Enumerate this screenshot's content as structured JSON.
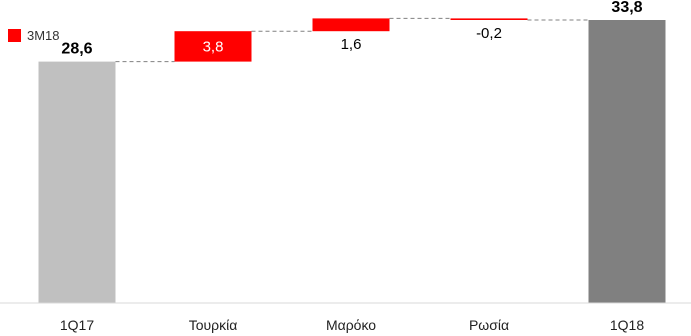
{
  "chart_data": {
    "type": "waterfall",
    "legend": [
      {
        "label": "3M18",
        "color": "#ff0000"
      }
    ],
    "categories": [
      "1Q17",
      "Τουρκία",
      "Μαρόκο",
      "Ρωσία",
      "1Q18"
    ],
    "values": [
      28.6,
      3.8,
      1.6,
      -0.2,
      33.8
    ],
    "value_labels": [
      "28,6",
      "3,8",
      "1,6",
      "-0,2",
      "33,8"
    ],
    "bar_kinds": [
      "total",
      "delta",
      "delta",
      "delta",
      "total"
    ],
    "colors": {
      "start_total": "#c0c0c0",
      "delta": "#ff0000",
      "end_total": "#808080",
      "connector": "#808080"
    },
    "grid": false,
    "axes_visible": false
  }
}
